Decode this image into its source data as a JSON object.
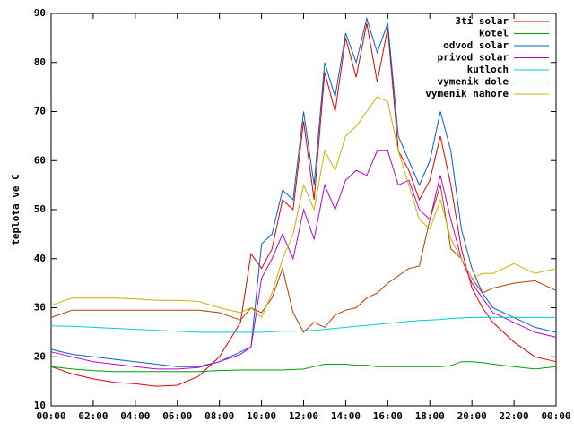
{
  "chart_data": {
    "type": "line",
    "y_label": "teplota ve C",
    "x": [
      0,
      1,
      2,
      3,
      4,
      5,
      6,
      7,
      8,
      9,
      9.5,
      10,
      10.5,
      11,
      11.5,
      12,
      12.5,
      13,
      13.5,
      14,
      14.5,
      15,
      15.5,
      16,
      16.5,
      17,
      17.5,
      18,
      18.5,
      19,
      19.5,
      20,
      20.5,
      21,
      22,
      23,
      24
    ],
    "xlim": [
      0,
      24
    ],
    "xticks": [
      {
        "value": 0,
        "label": "00:00"
      },
      {
        "value": 2,
        "label": "02:00"
      },
      {
        "value": 4,
        "label": "04:00"
      },
      {
        "value": 6,
        "label": "06:00"
      },
      {
        "value": 8,
        "label": "08:00"
      },
      {
        "value": 10,
        "label": "10:00"
      },
      {
        "value": 12,
        "label": "12:00"
      },
      {
        "value": 14,
        "label": "14:00"
      },
      {
        "value": 16,
        "label": "16:00"
      },
      {
        "value": 18,
        "label": "18:00"
      },
      {
        "value": 20,
        "label": "20:00"
      },
      {
        "value": 22,
        "label": "22:00"
      },
      {
        "value": 24,
        "label": "00:00"
      }
    ],
    "ylim": [
      10,
      90
    ],
    "yticks": [
      10,
      20,
      30,
      40,
      50,
      60,
      70,
      80,
      90
    ],
    "grid": false,
    "legend": "top-right",
    "series": [
      {
        "name": "3ti solar",
        "color": "#e00000",
        "values": [
          18,
          16.5,
          15.5,
          14.8,
          14.5,
          14,
          14.2,
          16,
          20,
          27,
          41,
          38,
          42,
          52,
          50,
          68,
          52,
          78,
          70,
          85,
          77,
          88,
          76,
          87,
          62,
          58,
          52,
          56,
          65,
          55,
          42,
          34,
          30,
          27,
          23,
          20,
          19
        ]
      },
      {
        "name": "kotel",
        "color": "#00a000",
        "values": [
          18,
          17.5,
          17.2,
          17,
          17,
          17,
          17,
          17,
          17.2,
          17.3,
          17.3,
          17.3,
          17.3,
          17.3,
          17.4,
          17.5,
          18,
          18.5,
          18.5,
          18.5,
          18.3,
          18.3,
          18,
          18,
          18,
          18,
          18,
          18,
          18,
          18.2,
          19,
          19,
          18.8,
          18.5,
          18,
          17.5,
          18
        ]
      },
      {
        "name": "odvod solar",
        "color": "#0060d0",
        "values": [
          21.5,
          20.5,
          20,
          19.5,
          19,
          18.5,
          18,
          18,
          19,
          21,
          22,
          43,
          45,
          54,
          52,
          70,
          55,
          80,
          73,
          86,
          80,
          89,
          82,
          88,
          65,
          60,
          55,
          60,
          70,
          62,
          46,
          38,
          33,
          30,
          28,
          26,
          25
        ]
      },
      {
        "name": "privod solar",
        "color": "#c000d0",
        "values": [
          21,
          20,
          19,
          18.5,
          18,
          17.5,
          17.5,
          17.8,
          19,
          20.5,
          22,
          36,
          40,
          45,
          40,
          50,
          44,
          55,
          50,
          56,
          58,
          57,
          62,
          62,
          55,
          56,
          50,
          48,
          57,
          48,
          40,
          35,
          32,
          29,
          27,
          25,
          24
        ]
      },
      {
        "name": "kutloch",
        "color": "#00d0d0",
        "values": [
          26.3,
          26.2,
          26,
          25.8,
          25.6,
          25.4,
          25.2,
          25,
          25,
          25,
          25,
          25,
          25.1,
          25.2,
          25.2,
          25.3,
          25.4,
          25.6,
          25.8,
          26,
          26.2,
          26.4,
          26.6,
          26.8,
          27,
          27.2,
          27.4,
          27.5,
          27.6,
          27.8,
          27.9,
          28,
          28,
          28,
          28,
          28,
          28
        ]
      },
      {
        "name": "vymenik dole",
        "color": "#b04000",
        "values": [
          28,
          29.5,
          29.5,
          29.5,
          29.5,
          29.5,
          29.5,
          29.5,
          29,
          27.5,
          30,
          29,
          32,
          38,
          29,
          25,
          27,
          26,
          28.5,
          29.5,
          30,
          32,
          33,
          35,
          36.5,
          38,
          38.5,
          48,
          55,
          42,
          40,
          36,
          33,
          34,
          35,
          35.5,
          33.5
        ]
      },
      {
        "name": "vymenik nahore",
        "color": "#c8b400",
        "values": [
          30.5,
          32,
          32,
          32,
          31.8,
          31.5,
          31.5,
          31.3,
          30,
          29,
          30,
          28,
          33,
          40,
          45,
          55,
          50,
          62,
          58,
          65,
          67,
          70,
          73,
          72,
          62,
          55,
          48,
          46,
          52,
          44,
          40,
          36,
          37,
          37,
          39,
          37,
          38
        ]
      }
    ]
  }
}
